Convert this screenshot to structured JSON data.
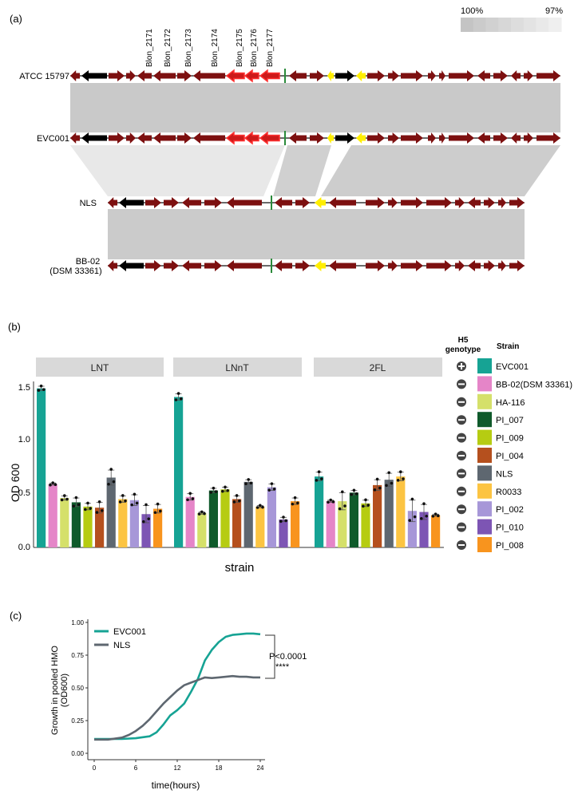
{
  "panels": {
    "a": {
      "label": "(a)"
    },
    "b": {
      "label": "(b)"
    },
    "c": {
      "label": "(c)"
    }
  },
  "identity_legend": {
    "high": "100%",
    "low": "97%",
    "colors": [
      "#c4c4c4",
      "#cbcbcb",
      "#d1d1d1",
      "#d7d7d7",
      "#dddddd",
      "#e3e3e3",
      "#e9e9e9",
      "#efefef"
    ]
  },
  "gene_labels": [
    "Blon_2171",
    "Blon_2172",
    "Blon_2173",
    "Blon_2174",
    "Blon_2175",
    "Blon_2176",
    "Blon_2177"
  ],
  "strain_tracks": [
    {
      "name": "ATCC 15797"
    },
    {
      "name": "EVC001"
    },
    {
      "name": "NLS"
    },
    {
      "name": "BB-02\n(DSM 33361)",
      "line1": "BB-02",
      "line2": "(DSM 33361)"
    }
  ],
  "gene_colors": {
    "gene": "#7d1010",
    "hmo_cluster": "#cc1a1a",
    "highlight_outline": "#ff3030",
    "other": "#000000",
    "yellow": "#ffee00",
    "marker": "#2a8a3a"
  },
  "chart_data": [
    {
      "type": "bar",
      "panel": "b",
      "ylabel": "OD 600",
      "xlabel": "strain",
      "ylim": [
        0,
        1.55
      ],
      "yticks": [
        "0.0",
        "0.5",
        "1.0",
        "1.5"
      ],
      "facets": [
        "LNT",
        "LNnT",
        "2FL"
      ],
      "categories": [
        "EVC001",
        "BB-02(DSM 33361)",
        "HA-116",
        "PI_007",
        "PI_009",
        "PI_004",
        "NLS",
        "R0033",
        "PI_002",
        "PI_010",
        "PI_008"
      ],
      "colors": [
        "#16a394",
        "#e585c8",
        "#d5e06a",
        "#0f5a2b",
        "#b6cc12",
        "#b5501e",
        "#5e6770",
        "#fcc442",
        "#a797d8",
        "#7d55b4",
        "#f8941e"
      ],
      "h5_genotype": [
        "+",
        "-",
        "-",
        "-",
        "-",
        "-",
        "-",
        "-",
        "-",
        "-",
        "-"
      ],
      "series": [
        {
          "name": "LNT",
          "values": [
            1.48,
            0.59,
            0.46,
            0.42,
            0.38,
            0.37,
            0.65,
            0.45,
            0.44,
            0.31,
            0.36
          ],
          "errors": [
            0.02,
            0.01,
            0.02,
            0.04,
            0.03,
            0.05,
            0.07,
            0.03,
            0.05,
            0.08,
            0.04
          ]
        },
        {
          "name": "LNnT",
          "values": [
            1.4,
            0.47,
            0.32,
            0.53,
            0.54,
            0.45,
            0.61,
            0.38,
            0.56,
            0.26,
            0.43
          ],
          "errors": [
            0.03,
            0.03,
            0.01,
            0.02,
            0.02,
            0.03,
            0.02,
            0.01,
            0.03,
            0.02,
            0.03
          ]
        },
        {
          "name": "2FL",
          "values": [
            0.66,
            0.43,
            0.43,
            0.51,
            0.41,
            0.58,
            0.63,
            0.66,
            0.34,
            0.33,
            0.3
          ],
          "errors": [
            0.04,
            0.01,
            0.08,
            0.02,
            0.03,
            0.05,
            0.06,
            0.04,
            0.1,
            0.07,
            0.01
          ]
        }
      ],
      "legend": {
        "genotype_title_1": "H5",
        "genotype_title_2": "genotype",
        "strain_title": "Strain"
      }
    },
    {
      "type": "line",
      "panel": "c",
      "xlabel": "time(hours)",
      "ylabel_line1": "Growth in pooled HMO",
      "ylabel_line2": "(OD600)",
      "xlim": [
        0,
        24
      ],
      "ylim": [
        0,
        1.0
      ],
      "xticks": [
        "0",
        "6",
        "12",
        "18",
        "24"
      ],
      "yticks": [
        "0.00",
        "0.25",
        "0.50",
        "0.75",
        "1.00"
      ],
      "series": [
        {
          "name": "EVC001",
          "color": "#16a394",
          "x": [
            0,
            2,
            4,
            6,
            8,
            9,
            10,
            11,
            12,
            13,
            14,
            15,
            16,
            17,
            18,
            19,
            20,
            21,
            22,
            23,
            24
          ],
          "y": [
            0.11,
            0.11,
            0.11,
            0.115,
            0.13,
            0.16,
            0.22,
            0.29,
            0.33,
            0.38,
            0.47,
            0.57,
            0.71,
            0.79,
            0.85,
            0.89,
            0.905,
            0.91,
            0.915,
            0.915,
            0.91
          ]
        },
        {
          "name": "NLS",
          "color": "#5e6770",
          "x": [
            0,
            2,
            4,
            5,
            6,
            7,
            8,
            9,
            10,
            11,
            12,
            13,
            14,
            15,
            16,
            17,
            18,
            19,
            20,
            21,
            22,
            23,
            24
          ],
          "y": [
            0.105,
            0.105,
            0.12,
            0.14,
            0.17,
            0.21,
            0.26,
            0.32,
            0.38,
            0.43,
            0.48,
            0.52,
            0.54,
            0.56,
            0.58,
            0.575,
            0.58,
            0.585,
            0.59,
            0.585,
            0.585,
            0.58,
            0.58
          ]
        }
      ],
      "annotation": {
        "pvalue": "P<0.0001",
        "stars": "****"
      }
    }
  ]
}
